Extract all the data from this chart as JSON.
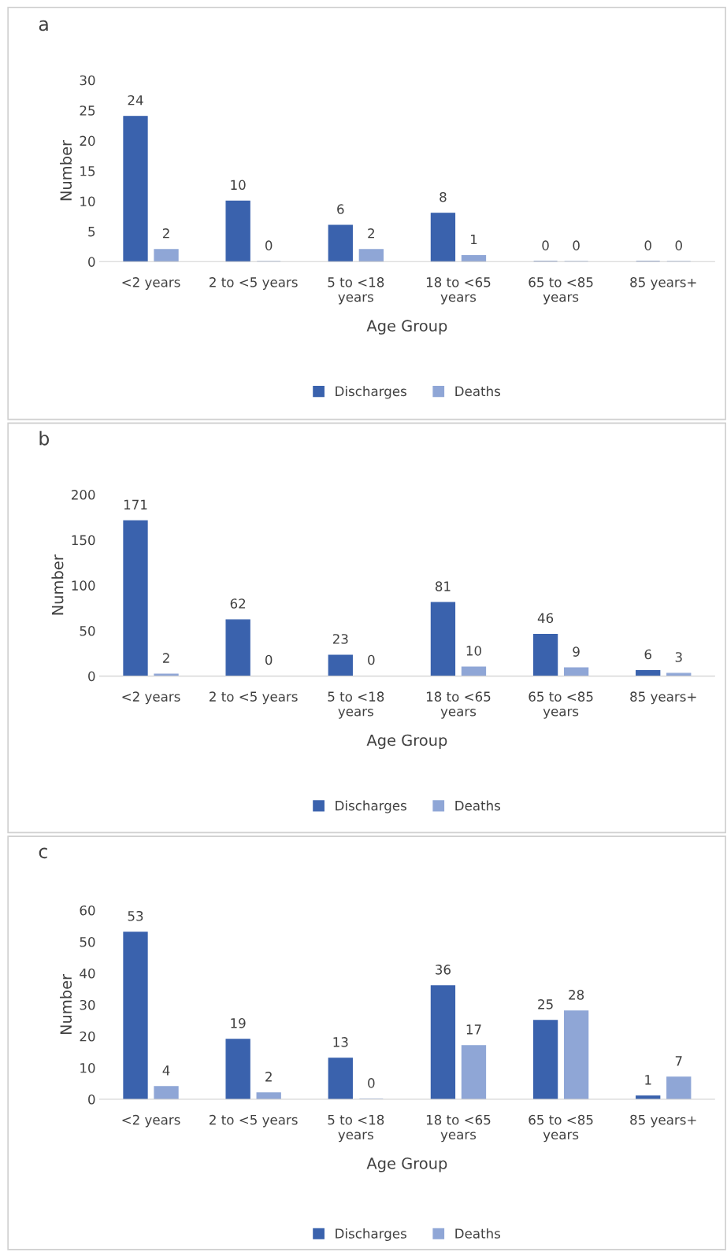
{
  "chart_data": [
    {
      "type": "bar",
      "title": "a",
      "xlabel": "Age Group",
      "ylabel": "Number",
      "categories": [
        "<2 years",
        "2 to <5 years",
        "5 to <18\nyears",
        "18 to <65\nyears",
        "65 to <85\nyears",
        "85 years+"
      ],
      "series": [
        {
          "name": "Discharges",
          "color": "#3a62ad",
          "values": [
            24,
            10,
            6,
            8,
            0,
            0
          ]
        },
        {
          "name": "Deaths",
          "color": "#8fa6d6",
          "values": [
            2,
            0,
            2,
            1,
            0,
            0
          ]
        }
      ],
      "ylim": [
        0,
        30
      ],
      "yticks": [
        0,
        5,
        10,
        15,
        20,
        25,
        30
      ],
      "data_labels": true,
      "legend": "bottom",
      "grid": false
    },
    {
      "type": "bar",
      "title": "b",
      "xlabel": "Age Group",
      "ylabel": "Number",
      "categories": [
        "<2 years",
        "2 to <5 years",
        "5 to <18\nyears",
        "18 to <65\nyears",
        "65 to <85\nyears",
        "85 years+"
      ],
      "series": [
        {
          "name": "Discharges",
          "color": "#3a62ad",
          "values": [
            171,
            62,
            23,
            81,
            46,
            6
          ]
        },
        {
          "name": "Deaths",
          "color": "#8fa6d6",
          "values": [
            2,
            0,
            0,
            10,
            9,
            3
          ]
        }
      ],
      "ylim": [
        0,
        200
      ],
      "yticks": [
        0,
        50,
        100,
        150,
        200
      ],
      "data_labels": true,
      "legend": "bottom",
      "grid": false
    },
    {
      "type": "bar",
      "title": "c",
      "xlabel": "Age Group",
      "ylabel": "Number",
      "categories": [
        "<2 years",
        "2 to <5 years",
        "5 to <18\nyears",
        "18 to <65\nyears",
        "65 to <85\nyears",
        "85 years+"
      ],
      "series": [
        {
          "name": "Discharges",
          "color": "#3a62ad",
          "values": [
            53,
            19,
            13,
            36,
            25,
            1
          ]
        },
        {
          "name": "Deaths",
          "color": "#8fa6d6",
          "values": [
            4,
            2,
            0,
            17,
            28,
            7
          ]
        }
      ],
      "ylim": [
        0,
        60
      ],
      "yticks": [
        0,
        10,
        20,
        30,
        40,
        50,
        60
      ],
      "data_labels": true,
      "legend": "bottom",
      "grid": false
    }
  ]
}
